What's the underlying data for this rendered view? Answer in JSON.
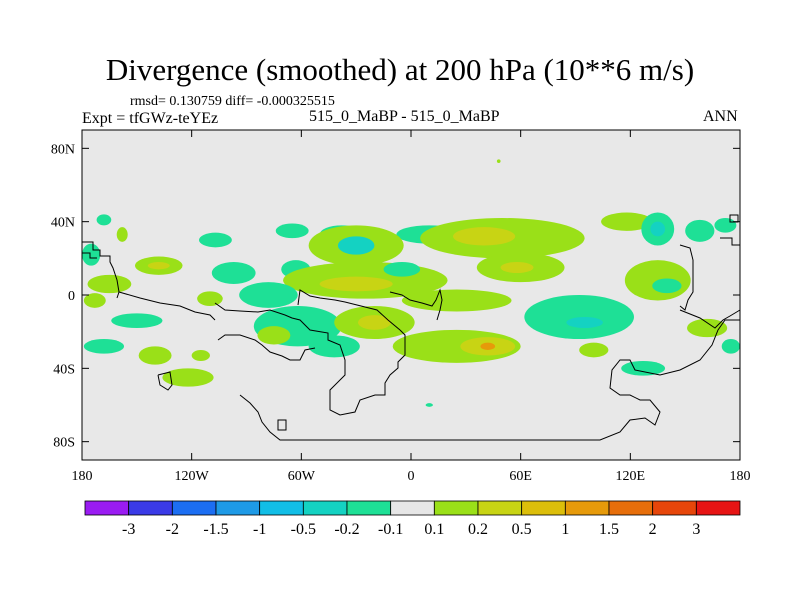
{
  "header": {
    "title": "Divergence (smoothed) at 200 hPa (10**6 m/s)",
    "rmsd_line": "rmsd= 0.130759  diff= -0.000325515",
    "expt": "Expt = tfGWz-teYEz",
    "cases": "515_0_MaBP - 515_0_MaBP",
    "season": "ANN"
  },
  "chart_data": {
    "type": "heatmap",
    "title": "Divergence (smoothed) at 200 hPa (10**6 m/s)",
    "xlabel": "",
    "ylabel": "",
    "xlim": [
      -180,
      180
    ],
    "ylim": [
      -90,
      90
    ],
    "x_ticks": [
      {
        "value": -180,
        "label": "180"
      },
      {
        "value": -120,
        "label": "120W"
      },
      {
        "value": -60,
        "label": "60W"
      },
      {
        "value": 0,
        "label": "0"
      },
      {
        "value": 60,
        "label": "60E"
      },
      {
        "value": 120,
        "label": "120E"
      },
      {
        "value": 180,
        "label": "180"
      }
    ],
    "y_ticks": [
      {
        "value": 80,
        "label": "80N"
      },
      {
        "value": 40,
        "label": "40N"
      },
      {
        "value": 0,
        "label": "0"
      },
      {
        "value": -40,
        "label": "40S"
      },
      {
        "value": -80,
        "label": "80S"
      }
    ],
    "background_value_color": "#e8e8e8",
    "colorbar": {
      "colors": [
        "#9a1cf2",
        "#3a3ae6",
        "#1c6ef2",
        "#1e9ae6",
        "#12bee6",
        "#14d2c2",
        "#1ee096",
        "#e6e6e6",
        "#9ae018",
        "#c8d414",
        "#dcbe0a",
        "#e69a0a",
        "#e66e0a",
        "#e6460a",
        "#e61414"
      ],
      "labels": [
        "-3",
        "-2",
        "-1.5",
        "-1",
        "-0.5",
        "-0.2",
        "-0.1",
        "0.1",
        "0.2",
        "0.5",
        "1",
        "1.5",
        "2",
        "3"
      ]
    },
    "regions": [
      {
        "lon": 10,
        "lat": 33,
        "rx": 18,
        "ry": 5,
        "level": "neg1"
      },
      {
        "lon": -38,
        "lat": 33,
        "rx": 12,
        "ry": 5,
        "level": "neg1"
      },
      {
        "lon": -65,
        "lat": 35,
        "rx": 9,
        "ry": 4,
        "level": "neg1"
      },
      {
        "lon": -107,
        "lat": 30,
        "rx": 9,
        "ry": 4,
        "level": "neg1"
      },
      {
        "lon": -168,
        "lat": 41,
        "rx": 4,
        "ry": 3,
        "level": "neg1"
      },
      {
        "lon": -158,
        "lat": 33,
        "rx": 3,
        "ry": 4,
        "level": "pos1"
      },
      {
        "lon": -30,
        "lat": 27,
        "rx": 26,
        "ry": 11,
        "level": "pos1"
      },
      {
        "lon": -30,
        "lat": 27,
        "rx": 10,
        "ry": 5,
        "level": "neg2"
      },
      {
        "lon": 50,
        "lat": 31,
        "rx": 45,
        "ry": 11,
        "level": "pos1"
      },
      {
        "lon": 40,
        "lat": 32,
        "rx": 17,
        "ry": 5,
        "level": "pos2"
      },
      {
        "lon": 118,
        "lat": 40,
        "rx": 14,
        "ry": 5,
        "level": "pos1"
      },
      {
        "lon": 135,
        "lat": 36,
        "rx": 9,
        "ry": 9,
        "level": "neg1"
      },
      {
        "lon": 135,
        "lat": 36,
        "rx": 4,
        "ry": 4,
        "level": "neg2"
      },
      {
        "lon": 158,
        "lat": 35,
        "rx": 8,
        "ry": 6,
        "level": "neg1"
      },
      {
        "lon": 172,
        "lat": 38,
        "rx": 6,
        "ry": 4,
        "level": "neg1"
      },
      {
        "lon": -138,
        "lat": 16,
        "rx": 13,
        "ry": 5,
        "level": "pos1"
      },
      {
        "lon": -138,
        "lat": 16,
        "rx": 6,
        "ry": 2,
        "level": "pos2"
      },
      {
        "lon": -97,
        "lat": 12,
        "rx": 12,
        "ry": 6,
        "level": "neg1"
      },
      {
        "lon": -63,
        "lat": 14,
        "rx": 8,
        "ry": 5,
        "level": "neg1"
      },
      {
        "lon": -25,
        "lat": 8,
        "rx": 45,
        "ry": 10,
        "level": "pos1"
      },
      {
        "lon": -30,
        "lat": 6,
        "rx": 20,
        "ry": 4,
        "level": "pos2"
      },
      {
        "lon": 60,
        "lat": 15,
        "rx": 24,
        "ry": 8,
        "level": "pos1"
      },
      {
        "lon": 58,
        "lat": 15,
        "rx": 9,
        "ry": 3,
        "level": "pos2"
      },
      {
        "lon": 135,
        "lat": 8,
        "rx": 18,
        "ry": 11,
        "level": "pos1"
      },
      {
        "lon": 140,
        "lat": 5,
        "rx": 8,
        "ry": 4,
        "level": "neg1"
      },
      {
        "lon": -5,
        "lat": 14,
        "rx": 10,
        "ry": 4,
        "level": "neg1"
      },
      {
        "lon": -165,
        "lat": 6,
        "rx": 12,
        "ry": 5,
        "level": "pos1"
      },
      {
        "lon": -175,
        "lat": 22,
        "rx": 5,
        "ry": 6,
        "level": "neg1"
      },
      {
        "lon": 25,
        "lat": -3,
        "rx": 30,
        "ry": 6,
        "level": "pos1"
      },
      {
        "lon": 92,
        "lat": -12,
        "rx": 30,
        "ry": 12,
        "level": "neg1"
      },
      {
        "lon": 95,
        "lat": -15,
        "rx": 10,
        "ry": 3,
        "level": "neg2"
      },
      {
        "lon": -150,
        "lat": -14,
        "rx": 14,
        "ry": 4,
        "level": "neg1"
      },
      {
        "lon": -173,
        "lat": -3,
        "rx": 6,
        "ry": 4,
        "level": "pos1"
      },
      {
        "lon": -110,
        "lat": -2,
        "rx": 7,
        "ry": 4,
        "level": "pos1"
      },
      {
        "lon": -78,
        "lat": 0,
        "rx": 16,
        "ry": 7,
        "level": "neg1"
      },
      {
        "lon": -62,
        "lat": -17,
        "rx": 24,
        "ry": 11,
        "level": "neg1"
      },
      {
        "lon": -42,
        "lat": -28,
        "rx": 14,
        "ry": 6,
        "level": "neg1"
      },
      {
        "lon": -75,
        "lat": -22,
        "rx": 9,
        "ry": 5,
        "level": "pos1"
      },
      {
        "lon": -20,
        "lat": -15,
        "rx": 22,
        "ry": 9,
        "level": "pos1"
      },
      {
        "lon": -20,
        "lat": -15,
        "rx": 9,
        "ry": 4,
        "level": "pos2"
      },
      {
        "lon": 25,
        "lat": -28,
        "rx": 35,
        "ry": 9,
        "level": "pos1"
      },
      {
        "lon": 42,
        "lat": -28,
        "rx": 15,
        "ry": 5,
        "level": "pos2"
      },
      {
        "lon": 42,
        "lat": -28,
        "rx": 4,
        "ry": 2,
        "level": "pos3"
      },
      {
        "lon": -140,
        "lat": -33,
        "rx": 9,
        "ry": 5,
        "level": "pos1"
      },
      {
        "lon": -168,
        "lat": -28,
        "rx": 11,
        "ry": 4,
        "level": "neg1"
      },
      {
        "lon": -122,
        "lat": -45,
        "rx": 14,
        "ry": 5,
        "level": "pos1"
      },
      {
        "lon": -115,
        "lat": -33,
        "rx": 5,
        "ry": 3,
        "level": "pos1"
      },
      {
        "lon": 127,
        "lat": -40,
        "rx": 12,
        "ry": 4,
        "level": "neg1"
      },
      {
        "lon": 162,
        "lat": -18,
        "rx": 11,
        "ry": 5,
        "level": "pos1"
      },
      {
        "lon": 175,
        "lat": -28,
        "rx": 5,
        "ry": 4,
        "level": "neg1"
      },
      {
        "lon": 100,
        "lat": -30,
        "rx": 8,
        "ry": 4,
        "level": "pos1"
      },
      {
        "lon": 10,
        "lat": -60,
        "rx": 2,
        "ry": 1,
        "level": "neg1"
      },
      {
        "lon": 48,
        "lat": 73,
        "rx": 1,
        "ry": 1,
        "level": "pos1"
      }
    ]
  }
}
